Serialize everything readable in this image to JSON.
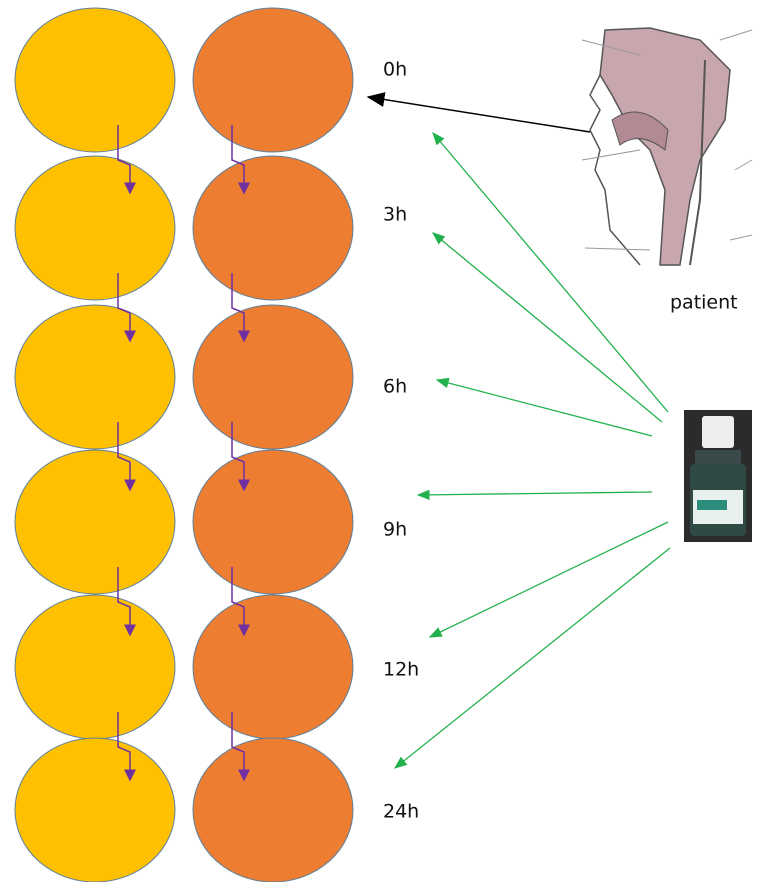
{
  "time_points": [
    "0h",
    "3h",
    "6h",
    "9h",
    "12h",
    "24h"
  ],
  "patient_label": "patient"
}
